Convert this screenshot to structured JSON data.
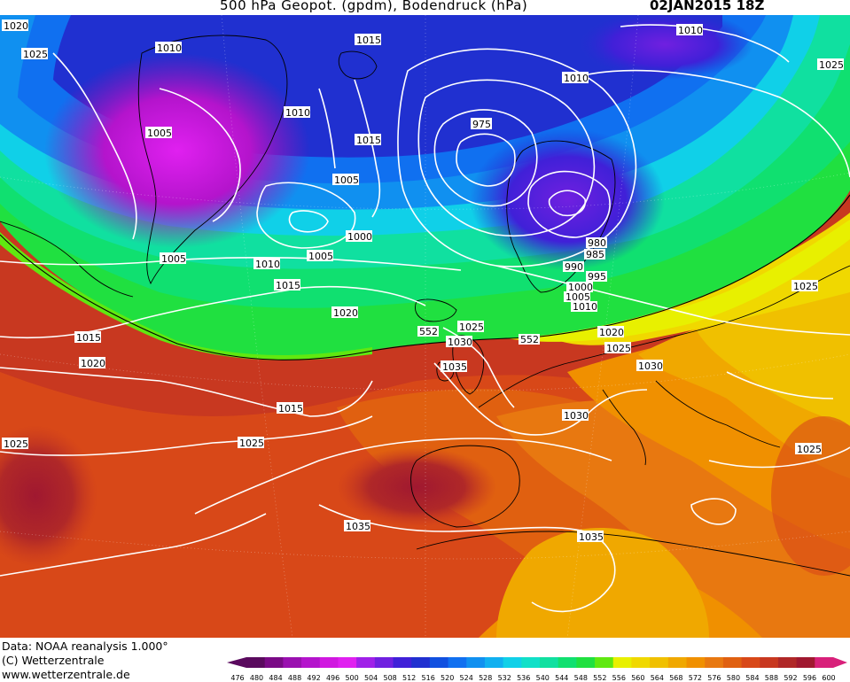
{
  "header": {
    "title": "500 hPa Geopot. (gpdm), Bodendruck (hPa)",
    "date": "02JAN2015 18Z"
  },
  "map": {
    "isobar_labels": [
      {
        "value": "1020"
      },
      {
        "value": "1025"
      },
      {
        "value": "1010"
      },
      {
        "value": "1015"
      },
      {
        "value": "1010"
      },
      {
        "value": "1025"
      },
      {
        "value": "1010"
      },
      {
        "value": "1005"
      },
      {
        "value": "1010"
      },
      {
        "value": "975"
      },
      {
        "value": "1015"
      },
      {
        "value": "1005"
      },
      {
        "value": "1000"
      },
      {
        "value": "1005"
      },
      {
        "value": "1010"
      },
      {
        "value": "1005"
      },
      {
        "value": "980"
      },
      {
        "value": "985"
      },
      {
        "value": "990"
      },
      {
        "value": "995"
      },
      {
        "value": "1000"
      },
      {
        "value": "1005"
      },
      {
        "value": "1010"
      },
      {
        "value": "1015"
      },
      {
        "value": "1025"
      },
      {
        "value": "1020"
      },
      {
        "value": "1015"
      },
      {
        "value": "1025"
      },
      {
        "value": "1030"
      },
      {
        "value": "1020"
      },
      {
        "value": "1025"
      },
      {
        "value": "1035"
      },
      {
        "value": "1030"
      },
      {
        "value": "1020"
      },
      {
        "value": "1015"
      },
      {
        "value": "1030"
      },
      {
        "value": "1025"
      },
      {
        "value": "1025"
      },
      {
        "value": "1025"
      },
      {
        "value": "1035"
      },
      {
        "value": "1035"
      }
    ],
    "geopotential_labels": [
      {
        "value": "552"
      },
      {
        "value": "552"
      }
    ]
  },
  "footer": {
    "data_source": "Data: NOAA reanalysis 1.000°",
    "copyright": "(C) Wetterzentrale",
    "website": "www.wetterzentrale.de"
  },
  "color_scale": {
    "ticks": [
      "476",
      "480",
      "484",
      "488",
      "492",
      "496",
      "500",
      "504",
      "508",
      "512",
      "516",
      "520",
      "524",
      "528",
      "532",
      "536",
      "540",
      "544",
      "548",
      "552",
      "556",
      "560",
      "564",
      "568",
      "572",
      "576",
      "580",
      "584",
      "588",
      "592",
      "596",
      "600"
    ],
    "colors": [
      "#5a0a5e",
      "#7a0a86",
      "#9a10b0",
      "#b414cc",
      "#d018e0",
      "#e020f0",
      "#a020e8",
      "#7020e0",
      "#4020d8",
      "#2030d0",
      "#1050e0",
      "#1070f0",
      "#1090f0",
      "#10b0f0",
      "#10d0e8",
      "#10e0c8",
      "#10e0a0",
      "#10e070",
      "#20e040",
      "#60e810",
      "#e8f000",
      "#f0d800",
      "#f0c000",
      "#f0a800",
      "#f09000",
      "#e87810",
      "#e06010",
      "#d84818",
      "#c83820",
      "#b02828",
      "#a01830",
      "#d8207a"
    ]
  }
}
